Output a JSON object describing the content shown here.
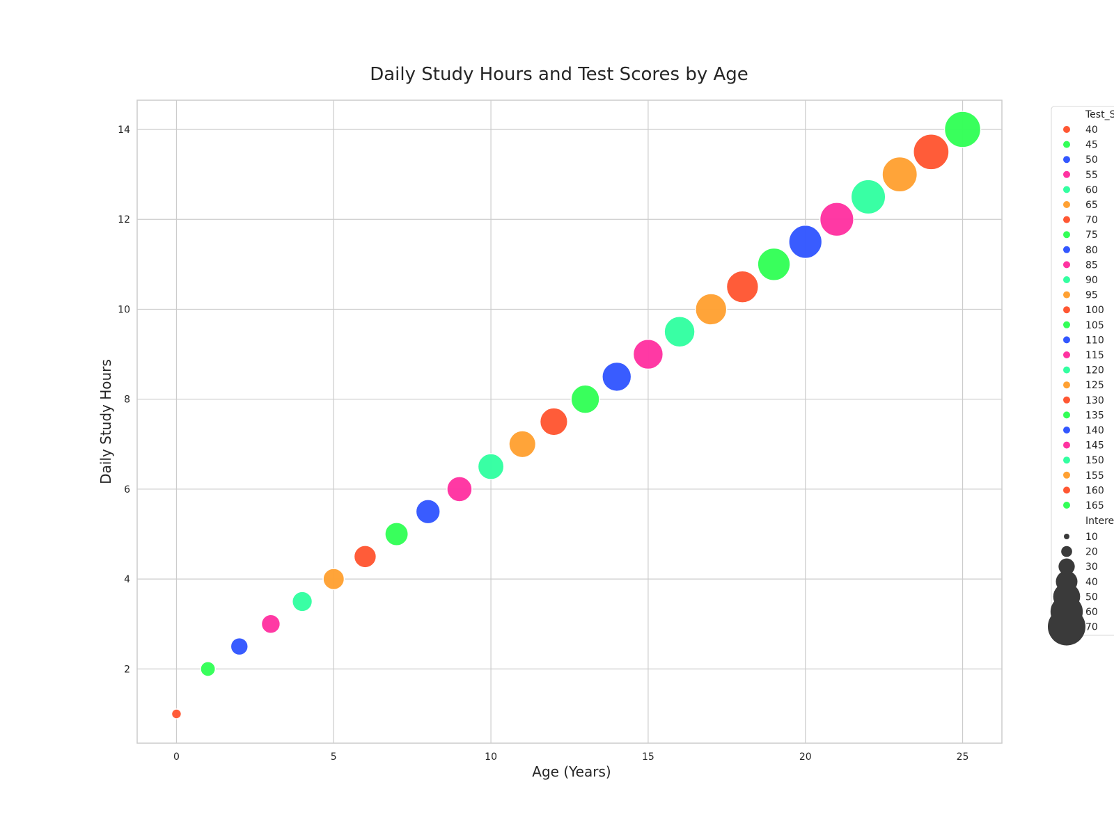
{
  "chart_data": {
    "type": "scatter",
    "title": "Daily Study Hours and Test Scores by Age",
    "xlabel": "Age (Years)",
    "ylabel": "Daily Study Hours",
    "xlim": [
      -1.25,
      26.25
    ],
    "ylim": [
      0.35,
      14.65
    ],
    "xticks": [
      0,
      5,
      10,
      15,
      20,
      25
    ],
    "yticks": [
      2,
      4,
      6,
      8,
      10,
      12,
      14
    ],
    "grid": true,
    "legend_placement": "right outside",
    "hue_legend_title": "Test_S",
    "size_legend_title": "Interes",
    "x": [
      0,
      1,
      2,
      3,
      4,
      5,
      6,
      7,
      8,
      9,
      10,
      11,
      12,
      13,
      14,
      15,
      16,
      17,
      18,
      19,
      20,
      21,
      22,
      23,
      24,
      25
    ],
    "y": [
      1,
      2,
      2.5,
      3,
      3.5,
      4,
      4.5,
      5,
      5.5,
      6,
      6.5,
      7,
      7.5,
      8,
      8.5,
      9,
      9.5,
      10,
      10.5,
      11,
      11.5,
      12,
      12.5,
      13,
      13.5,
      14
    ],
    "test_score": [
      40,
      45,
      50,
      55,
      60,
      65,
      70,
      75,
      80,
      85,
      90,
      95,
      100,
      105,
      110,
      115,
      120,
      125,
      130,
      135,
      140,
      145,
      150,
      155,
      160,
      165
    ],
    "interest": [
      1,
      5,
      8,
      10,
      12,
      14,
      16,
      18,
      20,
      22,
      24,
      26,
      28,
      30,
      32,
      34,
      36,
      38,
      40,
      42,
      44,
      46,
      48,
      50,
      52,
      54
    ],
    "hue_palette": [
      "#ff5733",
      "#33ff57",
      "#3357ff",
      "#ff33a1",
      "#33ffa1",
      "#ffa133"
    ],
    "size_legend_values": [
      10,
      20,
      30,
      40,
      50,
      60,
      70
    ],
    "size_legend_color": "#3a3a3a"
  }
}
